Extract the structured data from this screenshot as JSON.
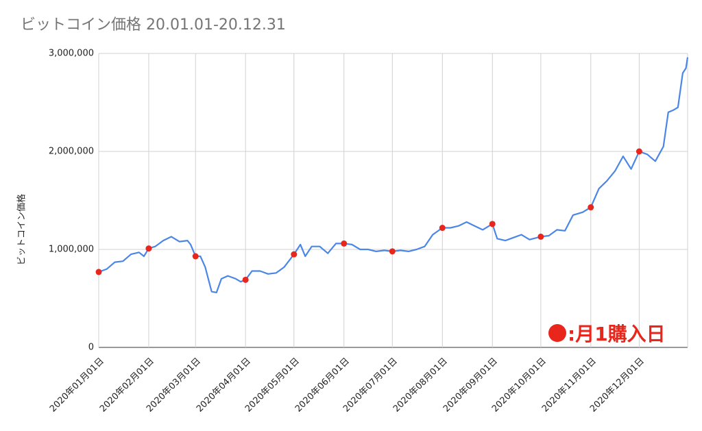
{
  "chart_data": {
    "type": "line",
    "title": "ビットコイン価格 20.01.01-20.12.31",
    "xlabel": "",
    "ylabel": "ビットコイン価格",
    "ylim": [
      0,
      3000000
    ],
    "yticks": [
      "0",
      "1,000,000",
      "2,000,000",
      "3,000,000"
    ],
    "xticks": [
      "2020年01月01日",
      "2020年02月01日",
      "2020年03月01日",
      "2020年04月01日",
      "2020年05月01日",
      "2020年06月01日",
      "2020年07月01日",
      "2020年08月01日",
      "2020年09月01日",
      "2020年10月01日",
      "2020年11月01日",
      "2020年12月01日"
    ],
    "x_start": "2020-01-01",
    "x_end": "2020-12-31",
    "grid": true,
    "line_color": "#4a86e8",
    "marker_color": "#e8261c",
    "series": [
      {
        "points": [
          [
            0,
            770000
          ],
          [
            5,
            800000
          ],
          [
            10,
            870000
          ],
          [
            15,
            880000
          ],
          [
            20,
            950000
          ],
          [
            25,
            970000
          ],
          [
            28,
            930000
          ],
          [
            31,
            1010000
          ],
          [
            35,
            1030000
          ],
          [
            40,
            1090000
          ],
          [
            45,
            1130000
          ],
          [
            50,
            1080000
          ],
          [
            55,
            1090000
          ],
          [
            57,
            1050000
          ],
          [
            60,
            930000
          ],
          [
            63,
            930000
          ],
          [
            66,
            820000
          ],
          [
            70,
            570000
          ],
          [
            73,
            560000
          ],
          [
            76,
            700000
          ],
          [
            80,
            730000
          ],
          [
            85,
            700000
          ],
          [
            88,
            670000
          ],
          [
            91,
            690000
          ],
          [
            95,
            780000
          ],
          [
            100,
            780000
          ],
          [
            105,
            750000
          ],
          [
            110,
            760000
          ],
          [
            115,
            820000
          ],
          [
            121,
            950000
          ],
          [
            125,
            1050000
          ],
          [
            128,
            930000
          ],
          [
            132,
            1030000
          ],
          [
            137,
            1030000
          ],
          [
            142,
            960000
          ],
          [
            147,
            1060000
          ],
          [
            152,
            1060000
          ],
          [
            157,
            1050000
          ],
          [
            162,
            1000000
          ],
          [
            167,
            1000000
          ],
          [
            172,
            980000
          ],
          [
            177,
            990000
          ],
          [
            182,
            980000
          ],
          [
            187,
            990000
          ],
          [
            192,
            980000
          ],
          [
            197,
            1000000
          ],
          [
            202,
            1030000
          ],
          [
            207,
            1150000
          ],
          [
            213,
            1220000
          ],
          [
            218,
            1220000
          ],
          [
            223,
            1240000
          ],
          [
            228,
            1280000
          ],
          [
            233,
            1240000
          ],
          [
            238,
            1200000
          ],
          [
            244,
            1260000
          ],
          [
            247,
            1110000
          ],
          [
            252,
            1090000
          ],
          [
            257,
            1120000
          ],
          [
            262,
            1150000
          ],
          [
            267,
            1100000
          ],
          [
            274,
            1130000
          ],
          [
            279,
            1140000
          ],
          [
            284,
            1200000
          ],
          [
            289,
            1190000
          ],
          [
            294,
            1350000
          ],
          [
            300,
            1380000
          ],
          [
            305,
            1430000
          ],
          [
            310,
            1620000
          ],
          [
            315,
            1700000
          ],
          [
            320,
            1800000
          ],
          [
            325,
            1950000
          ],
          [
            330,
            1820000
          ],
          [
            335,
            2000000
          ],
          [
            340,
            1970000
          ],
          [
            345,
            1900000
          ],
          [
            350,
            2050000
          ],
          [
            353,
            2400000
          ],
          [
            356,
            2420000
          ],
          [
            359,
            2450000
          ],
          [
            362,
            2800000
          ],
          [
            364,
            2850000
          ],
          [
            365,
            2960000
          ]
        ]
      }
    ],
    "markers": [
      {
        "label": "2020年01月01日",
        "x": 0,
        "value": 770000
      },
      {
        "label": "2020年02月01日",
        "x": 31,
        "value": 1010000
      },
      {
        "label": "2020年03月01日",
        "x": 60,
        "value": 930000
      },
      {
        "label": "2020年04月01日",
        "x": 91,
        "value": 690000
      },
      {
        "label": "2020年05月01日",
        "x": 121,
        "value": 950000
      },
      {
        "label": "2020年06月01日",
        "x": 152,
        "value": 1060000
      },
      {
        "label": "2020年07月01日",
        "x": 182,
        "value": 980000
      },
      {
        "label": "2020年08月01日",
        "x": 213,
        "value": 1220000
      },
      {
        "label": "2020年09月01日",
        "x": 244,
        "value": 1260000
      },
      {
        "label": "2020年10月01日",
        "x": 274,
        "value": 1130000
      },
      {
        "label": "2020年11月01日",
        "x": 305,
        "value": 1430000
      },
      {
        "label": "2020年12月01日",
        "x": 335,
        "value": 2000000
      }
    ],
    "legend": {
      "text": ":月1購入日",
      "placement": "bottom-right"
    }
  }
}
